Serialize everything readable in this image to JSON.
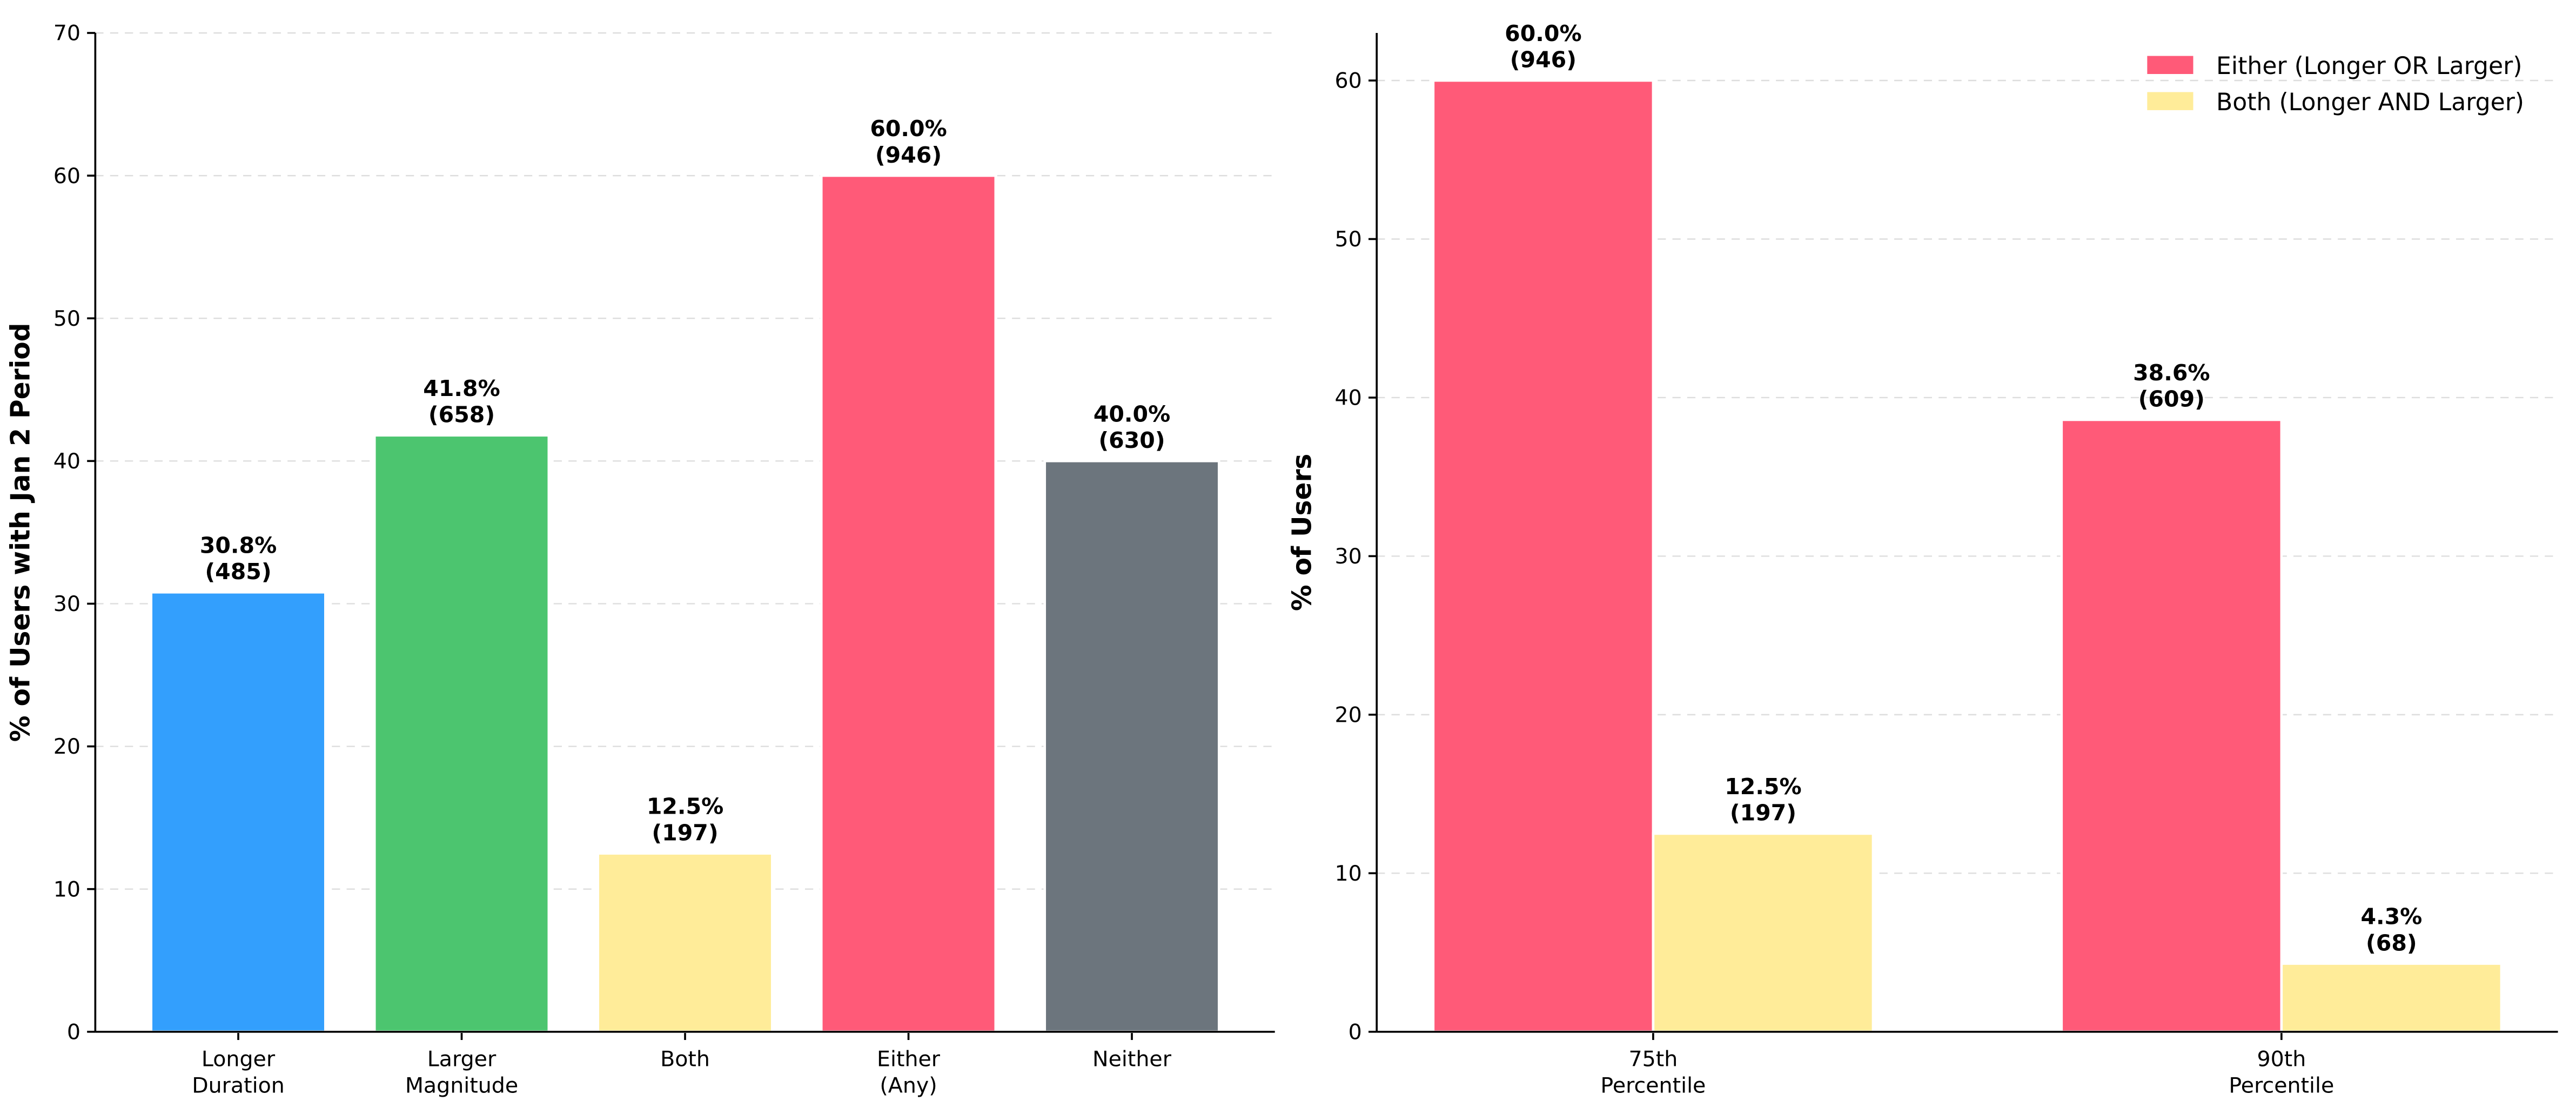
{
  "chart_data": [
    {
      "type": "bar",
      "ylabel": "% of Users with Jan 2 Period",
      "categories": [
        "Longer\nDuration",
        "Larger\nMagnitude",
        "Both",
        "Either\n(Any)",
        "Neither"
      ],
      "values": [
        30.8,
        41.8,
        12.5,
        60.0,
        40.0
      ],
      "value_labels": [
        "30.8%\n(485)",
        "41.8%\n(658)",
        "12.5%\n(197)",
        "60.0%\n(946)",
        "40.0%\n(630)"
      ],
      "colors": [
        "#339ffd",
        "#4cc56f",
        "#ffec99",
        "#ff5a78",
        "#6c757d"
      ],
      "ylim": [
        0,
        70
      ],
      "yticks": [
        0,
        10,
        20,
        30,
        40,
        50,
        60,
        70
      ],
      "grid": true
    },
    {
      "type": "grouped_bar",
      "ylabel": "% of Users",
      "categories": [
        "75th\nPercentile",
        "90th\nPercentile"
      ],
      "series": [
        {
          "name": "Either (Longer OR Larger)",
          "color": "#ff5a78",
          "values": [
            60.0,
            38.6
          ],
          "value_labels": [
            "60.0%\n(946)",
            "38.6%\n(609)"
          ]
        },
        {
          "name": "Both (Longer AND Larger)",
          "color": "#ffec99",
          "values": [
            12.5,
            4.3
          ],
          "value_labels": [
            "12.5%\n(197)",
            "4.3%\n(68)"
          ]
        }
      ],
      "ylim": [
        0,
        63
      ],
      "yticks": [
        0,
        10,
        20,
        30,
        40,
        50,
        60
      ],
      "grid": true,
      "legend": "upper right"
    }
  ]
}
